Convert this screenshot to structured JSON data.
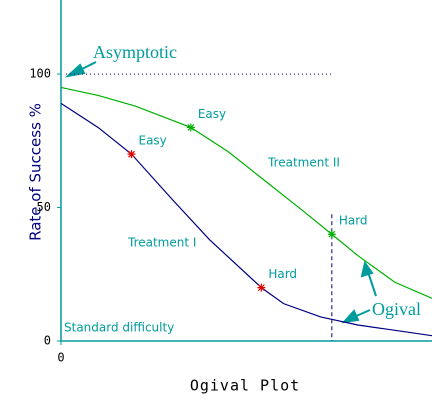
{
  "chart_data": {
    "type": "line",
    "title": "Ogival Plot",
    "y_label": "Rate of Success %",
    "xlim": [
      0,
      100
    ],
    "xticks": [
      0
    ],
    "ylim": [
      0,
      127
    ],
    "yticks": [
      0,
      50,
      100
    ],
    "asymptote": 100,
    "annotations": {
      "asymptote": "Asymptotic",
      "curve": "Ogival",
      "baseline": "Standard difficulty"
    },
    "series": [
      {
        "name": "Treatment I",
        "color": "#000080",
        "point_color": "#e00000",
        "x": [
          0,
          10,
          19,
          30,
          40,
          54,
          60,
          70,
          80,
          90,
          100
        ],
        "values": [
          89,
          80,
          70,
          53,
          38,
          20,
          14,
          9,
          6,
          4,
          2
        ],
        "points": {
          "x": [
            19,
            54
          ],
          "values": [
            70,
            20
          ],
          "labels": [
            "Easy",
            "Hard"
          ]
        }
      },
      {
        "name": "Treatment II",
        "color": "#00b000",
        "point_color": "#00b000",
        "x": [
          0,
          10,
          20,
          35,
          45,
          55,
          65,
          73,
          80,
          90,
          100
        ],
        "values": [
          95,
          92,
          88,
          80,
          71,
          60,
          49,
          40,
          32,
          22,
          16
        ],
        "points": {
          "x": [
            35,
            73
          ],
          "values": [
            80,
            40
          ],
          "labels": [
            "Easy",
            "Hard"
          ]
        }
      }
    ]
  }
}
